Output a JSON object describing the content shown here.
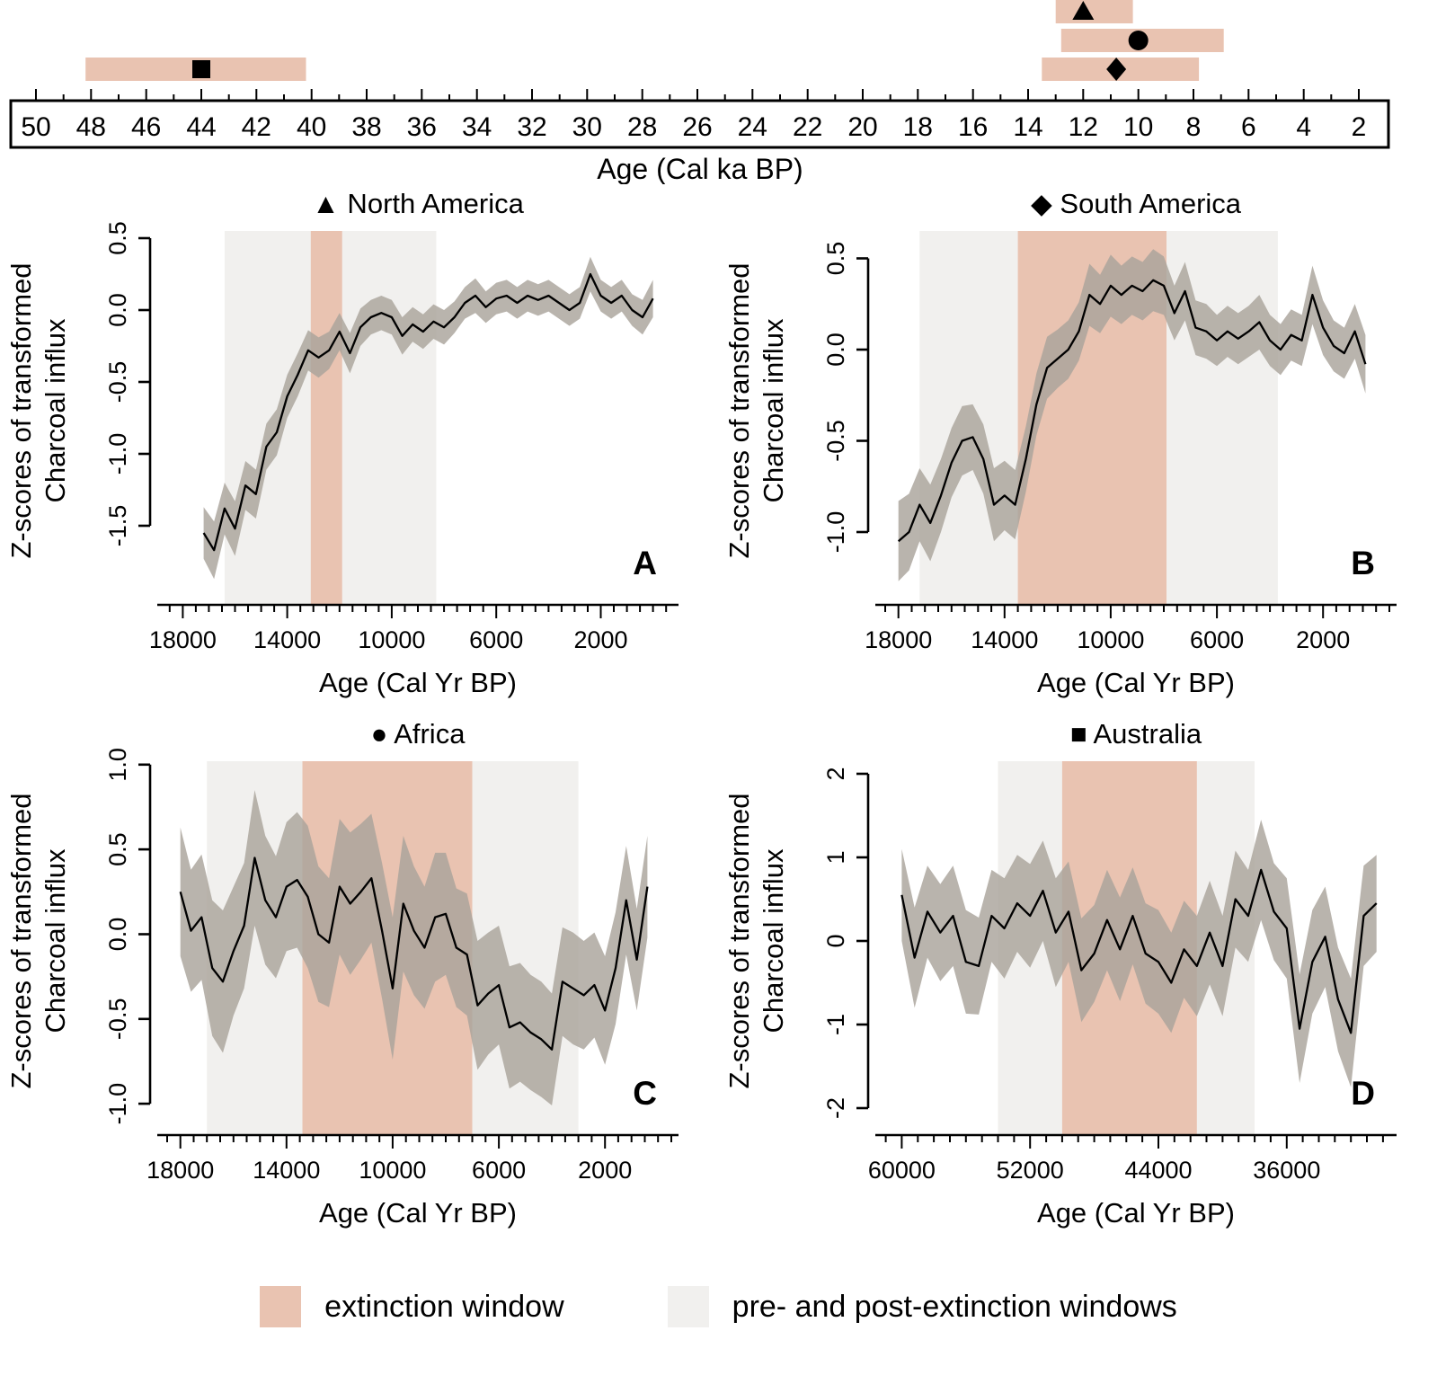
{
  "colors": {
    "extinction_window": "#e9c3b1",
    "prepost_window": "#f1f0ee",
    "confidence_band": "#aaa49b",
    "line": "#000000"
  },
  "timeline": {
    "axis_label": "Age (Cal ka BP)",
    "axis_min": 2,
    "axis_max": 50,
    "tick_step_labeled": 2,
    "bars": [
      {
        "region": "North America",
        "symbol": "triangle",
        "start": 13.0,
        "end": 10.2,
        "marker": 12.0,
        "row": 0
      },
      {
        "region": "Africa",
        "symbol": "circle",
        "start": 12.8,
        "end": 6.9,
        "marker": 10.0,
        "row": 1
      },
      {
        "region": "South America",
        "symbol": "diamond",
        "start": 13.5,
        "end": 7.8,
        "marker": 10.8,
        "row": 2
      },
      {
        "region": "Australia",
        "symbol": "square",
        "start": 48.2,
        "end": 40.2,
        "marker": 44.0,
        "row": 2
      }
    ]
  },
  "legend": {
    "extinction_label": "extinction window",
    "prepost_label": "pre- and post-extinction windows"
  },
  "chart_data": [
    {
      "type": "line",
      "panel_label": "A",
      "title": "North America",
      "symbol": "triangle",
      "xlabel": "Age (Cal Yr BP)",
      "ylabel_line1": "Z-scores of transformed",
      "ylabel_line2": "Charcoal influx",
      "x_range": [
        18700,
        -700
      ],
      "x_ticks": [
        18000,
        14000,
        10000,
        6000,
        2000
      ],
      "x_minor_step": 500,
      "y_range": [
        -1.95,
        0.55
      ],
      "y_tick_values": [
        0.5,
        0.0,
        -0.5,
        -1.0,
        -1.5
      ],
      "y_tick_labels": [
        "0.5",
        "0.0",
        "-0.5",
        "-1.0",
        "-1.5"
      ],
      "prepost_window": [
        16400,
        8300
      ],
      "extinction_window": [
        13100,
        11900
      ],
      "x": [
        17200,
        16800,
        16400,
        16000,
        15600,
        15200,
        14800,
        14400,
        14000,
        13600,
        13200,
        12800,
        12400,
        12000,
        11600,
        11200,
        10800,
        10400,
        10000,
        9600,
        9200,
        8800,
        8400,
        8000,
        7600,
        7200,
        6800,
        6400,
        6000,
        5600,
        5200,
        4800,
        4400,
        4000,
        3600,
        3200,
        2800,
        2400,
        2000,
        1600,
        1200,
        800,
        400,
        0
      ],
      "y": [
        -1.55,
        -1.67,
        -1.38,
        -1.52,
        -1.22,
        -1.28,
        -0.95,
        -0.85,
        -0.6,
        -0.45,
        -0.28,
        -0.33,
        -0.28,
        -0.15,
        -0.3,
        -0.12,
        -0.05,
        -0.02,
        -0.05,
        -0.18,
        -0.1,
        -0.15,
        -0.08,
        -0.12,
        -0.05,
        0.05,
        0.1,
        0.02,
        0.08,
        0.1,
        0.05,
        0.1,
        0.07,
        0.1,
        0.05,
        0.0,
        0.05,
        0.25,
        0.1,
        0.05,
        0.1,
        0.0,
        -0.05,
        0.08
      ],
      "band_halfwidth": [
        0.18,
        0.2,
        0.18,
        0.19,
        0.17,
        0.17,
        0.16,
        0.16,
        0.15,
        0.15,
        0.14,
        0.14,
        0.13,
        0.13,
        0.14,
        0.13,
        0.12,
        0.12,
        0.12,
        0.13,
        0.12,
        0.12,
        0.12,
        0.12,
        0.11,
        0.11,
        0.12,
        0.11,
        0.11,
        0.11,
        0.11,
        0.11,
        0.11,
        0.11,
        0.11,
        0.11,
        0.11,
        0.12,
        0.11,
        0.11,
        0.11,
        0.11,
        0.12,
        0.13
      ]
    },
    {
      "type": "line",
      "panel_label": "B",
      "title": "South America",
      "symbol": "diamond",
      "xlabel": "Age (Cal Yr BP)",
      "ylabel_line1": "Z-scores of transformed",
      "ylabel_line2": "Charcoal influx",
      "x_range": [
        18600,
        -500
      ],
      "x_ticks": [
        18000,
        14000,
        10000,
        6000,
        2000
      ],
      "x_minor_step": 500,
      "y_range": [
        -1.32,
        0.65
      ],
      "y_tick_values": [
        0.5,
        0.0,
        -0.5,
        -1.0
      ],
      "y_tick_labels": [
        "0.5",
        "0.0",
        "-0.5",
        "-1.0"
      ],
      "prepost_window": [
        17200,
        3700
      ],
      "extinction_window": [
        13500,
        7900
      ],
      "x": [
        18000,
        17600,
        17200,
        16800,
        16400,
        16000,
        15600,
        15200,
        14800,
        14400,
        14000,
        13600,
        13200,
        12800,
        12400,
        12000,
        11600,
        11200,
        10800,
        10400,
        10000,
        9600,
        9200,
        8800,
        8400,
        8000,
        7600,
        7200,
        6800,
        6400,
        6000,
        5600,
        5200,
        4800,
        4400,
        4000,
        3600,
        3200,
        2800,
        2400,
        2000,
        1600,
        1200,
        800,
        400
      ],
      "y": [
        -1.05,
        -1.0,
        -0.85,
        -0.95,
        -0.8,
        -0.62,
        -0.5,
        -0.48,
        -0.6,
        -0.85,
        -0.8,
        -0.85,
        -0.6,
        -0.3,
        -0.1,
        -0.05,
        0.0,
        0.1,
        0.3,
        0.25,
        0.35,
        0.3,
        0.35,
        0.32,
        0.38,
        0.35,
        0.2,
        0.32,
        0.12,
        0.1,
        0.05,
        0.1,
        0.06,
        0.1,
        0.15,
        0.05,
        0.0,
        0.08,
        0.05,
        0.3,
        0.12,
        0.02,
        -0.02,
        0.1,
        -0.08
      ],
      "band_halfwidth": [
        0.22,
        0.21,
        0.2,
        0.21,
        0.2,
        0.19,
        0.19,
        0.18,
        0.19,
        0.2,
        0.19,
        0.19,
        0.18,
        0.17,
        0.17,
        0.16,
        0.16,
        0.16,
        0.17,
        0.16,
        0.17,
        0.16,
        0.16,
        0.16,
        0.17,
        0.16,
        0.15,
        0.16,
        0.15,
        0.15,
        0.14,
        0.14,
        0.14,
        0.14,
        0.15,
        0.14,
        0.14,
        0.14,
        0.14,
        0.16,
        0.15,
        0.14,
        0.14,
        0.15,
        0.16
      ]
    },
    {
      "type": "line",
      "panel_label": "C",
      "title": "Africa",
      "symbol": "circle",
      "xlabel": "Age (Cal Yr BP)",
      "ylabel_line1": "Z-scores of transformed",
      "ylabel_line2": "Charcoal influx",
      "x_range": [
        18600,
        -500
      ],
      "x_ticks": [
        18000,
        14000,
        10000,
        6000,
        2000
      ],
      "x_minor_step": 500,
      "y_range": [
        -1.1,
        1.02
      ],
      "y_tick_values": [
        1.0,
        0.5,
        0.0,
        -0.5,
        -1.0
      ],
      "y_tick_labels": [
        "1.0",
        "0.5",
        "0.0",
        "-0.5",
        "-1.0"
      ],
      "prepost_window": [
        17000,
        3000
      ],
      "extinction_window": [
        13400,
        7000
      ],
      "x": [
        18000,
        17600,
        17200,
        16800,
        16400,
        16000,
        15600,
        15200,
        14800,
        14400,
        14000,
        13600,
        13200,
        12800,
        12400,
        12000,
        11600,
        11200,
        10800,
        10400,
        10000,
        9600,
        9200,
        8800,
        8400,
        8000,
        7600,
        7200,
        6800,
        6400,
        6000,
        5600,
        5200,
        4800,
        4400,
        4000,
        3600,
        3200,
        2800,
        2400,
        2000,
        1600,
        1200,
        800,
        400
      ],
      "y": [
        0.25,
        0.02,
        0.1,
        -0.2,
        -0.28,
        -0.1,
        0.05,
        0.45,
        0.2,
        0.1,
        0.28,
        0.32,
        0.22,
        0.0,
        -0.05,
        0.28,
        0.18,
        0.25,
        0.33,
        0.02,
        -0.32,
        0.18,
        0.02,
        -0.08,
        0.1,
        0.12,
        -0.08,
        -0.12,
        -0.42,
        -0.35,
        -0.3,
        -0.55,
        -0.52,
        -0.58,
        -0.62,
        -0.68,
        -0.28,
        -0.32,
        -0.36,
        -0.3,
        -0.45,
        -0.2,
        0.2,
        -0.15,
        0.28
      ],
      "band_halfwidth": [
        0.38,
        0.36,
        0.37,
        0.4,
        0.42,
        0.38,
        0.37,
        0.4,
        0.38,
        0.36,
        0.38,
        0.4,
        0.42,
        0.4,
        0.38,
        0.4,
        0.42,
        0.4,
        0.38,
        0.4,
        0.42,
        0.4,
        0.38,
        0.36,
        0.38,
        0.36,
        0.35,
        0.36,
        0.38,
        0.36,
        0.35,
        0.36,
        0.35,
        0.34,
        0.34,
        0.33,
        0.32,
        0.33,
        0.32,
        0.31,
        0.32,
        0.33,
        0.32,
        0.3,
        0.3
      ]
    },
    {
      "type": "line",
      "panel_label": "D",
      "title": "Australia",
      "symbol": "square",
      "xlabel": "Age (Cal Yr BP)",
      "ylabel_line1": "Z-scores of transformed",
      "ylabel_line2": "Charcoal influx",
      "x_range": [
        61200,
        29600
      ],
      "x_ticks": [
        60000,
        52000,
        44000,
        36000
      ],
      "x_minor_step": 1000,
      "y_range": [
        -2.15,
        2.15
      ],
      "y_tick_values": [
        2,
        1,
        0,
        -1,
        -2
      ],
      "y_tick_labels": [
        "2",
        "1",
        "0",
        "-1",
        "-2"
      ],
      "prepost_window": [
        54000,
        38000
      ],
      "extinction_window": [
        50000,
        41600
      ],
      "x": [
        60000,
        59200,
        58400,
        57600,
        56800,
        56000,
        55200,
        54400,
        53600,
        52800,
        52000,
        51200,
        50400,
        49600,
        48800,
        48000,
        47200,
        46400,
        45600,
        44800,
        44000,
        43200,
        42400,
        41600,
        40800,
        40000,
        39200,
        38400,
        37600,
        36800,
        36000,
        35200,
        34400,
        33600,
        32800,
        32000,
        31200,
        30400
      ],
      "y": [
        0.55,
        -0.2,
        0.35,
        0.1,
        0.3,
        -0.25,
        -0.3,
        0.3,
        0.15,
        0.45,
        0.3,
        0.6,
        0.1,
        0.35,
        -0.35,
        -0.15,
        0.25,
        -0.1,
        0.3,
        -0.15,
        -0.25,
        -0.5,
        -0.1,
        -0.3,
        0.1,
        -0.3,
        0.5,
        0.3,
        0.85,
        0.35,
        0.15,
        -1.05,
        -0.25,
        0.05,
        -0.7,
        -1.1,
        0.3,
        0.45
      ],
      "band_halfwidth": [
        0.55,
        0.6,
        0.55,
        0.58,
        0.6,
        0.62,
        0.58,
        0.55,
        0.6,
        0.58,
        0.62,
        0.6,
        0.65,
        0.6,
        0.62,
        0.58,
        0.6,
        0.62,
        0.58,
        0.6,
        0.62,
        0.6,
        0.58,
        0.6,
        0.62,
        0.6,
        0.58,
        0.55,
        0.6,
        0.58,
        0.6,
        0.65,
        0.62,
        0.6,
        0.62,
        0.65,
        0.6,
        0.58
      ]
    }
  ]
}
